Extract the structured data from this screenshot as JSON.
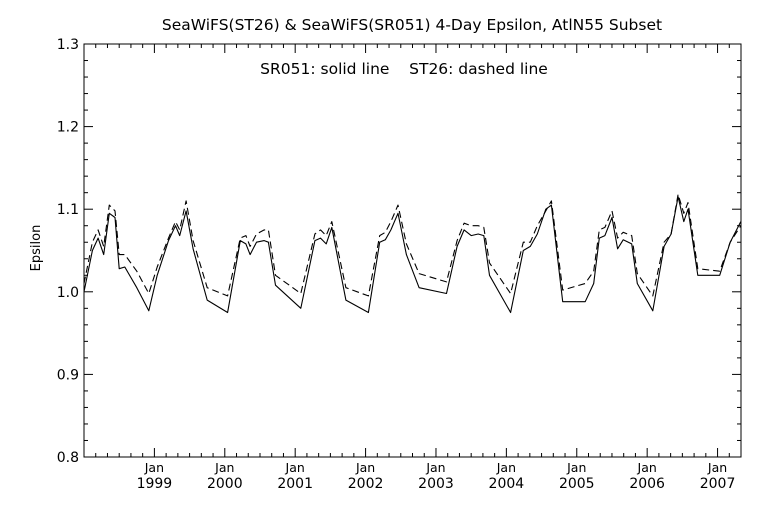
{
  "chart_data": {
    "type": "line",
    "title": "SeaWiFS(ST26) & SeaWiFS(SR051) 4-Day Epsilon, AtlN55 Subset",
    "annotation": "SR051: solid line    ST26: dashed line",
    "ylabel": "Epsilon",
    "xlabel": "",
    "ylim": [
      0.8,
      1.3
    ],
    "y_ticks": [
      "0.8",
      "0.9",
      "1.0",
      "1.1",
      "1.2",
      "1.3"
    ],
    "xlim": [
      1998.0,
      2007.333
    ],
    "x_ticks": [
      {
        "value": 1999.0,
        "month": "Jan",
        "year": "1999"
      },
      {
        "value": 2000.0,
        "month": "Jan",
        "year": "2000"
      },
      {
        "value": 2001.0,
        "month": "Jan",
        "year": "2001"
      },
      {
        "value": 2002.0,
        "month": "Jan",
        "year": "2002"
      },
      {
        "value": 2003.0,
        "month": "Jan",
        "year": "2003"
      },
      {
        "value": 2004.0,
        "month": "Jan",
        "year": "2004"
      },
      {
        "value": 2005.0,
        "month": "Jan",
        "year": "2005"
      },
      {
        "value": 2006.0,
        "month": "Jan",
        "year": "2006"
      },
      {
        "value": 2007.0,
        "month": "Jan",
        "year": "2007"
      }
    ],
    "series": [
      {
        "name": "SR051",
        "style": "solid",
        "color": "#000000",
        "points": [
          [
            1998.0,
            1.0
          ],
          [
            1998.12,
            1.05
          ],
          [
            1998.2,
            1.065
          ],
          [
            1998.28,
            1.045
          ],
          [
            1998.36,
            1.095
          ],
          [
            1998.44,
            1.09
          ],
          [
            1998.5,
            1.028
          ],
          [
            1998.58,
            1.03
          ],
          [
            1998.75,
            1.005
          ],
          [
            1998.92,
            0.977
          ],
          [
            1999.04,
            1.02
          ],
          [
            1999.2,
            1.062
          ],
          [
            1999.3,
            1.08
          ],
          [
            1999.36,
            1.068
          ],
          [
            1999.45,
            1.098
          ],
          [
            1999.55,
            1.052
          ],
          [
            1999.75,
            0.99
          ],
          [
            2000.04,
            0.975
          ],
          [
            2000.22,
            1.062
          ],
          [
            2000.3,
            1.058
          ],
          [
            2000.36,
            1.045
          ],
          [
            2000.45,
            1.06
          ],
          [
            2000.56,
            1.062
          ],
          [
            2000.62,
            1.06
          ],
          [
            2000.72,
            1.008
          ],
          [
            2001.08,
            0.98
          ],
          [
            2001.28,
            1.062
          ],
          [
            2001.36,
            1.065
          ],
          [
            2001.44,
            1.058
          ],
          [
            2001.52,
            1.078
          ],
          [
            2001.72,
            0.99
          ],
          [
            2002.04,
            0.975
          ],
          [
            2002.2,
            1.06
          ],
          [
            2002.28,
            1.063
          ],
          [
            2002.36,
            1.075
          ],
          [
            2002.46,
            1.095
          ],
          [
            2002.58,
            1.045
          ],
          [
            2002.76,
            1.005
          ],
          [
            2003.15,
            0.998
          ],
          [
            2003.3,
            1.055
          ],
          [
            2003.4,
            1.075
          ],
          [
            2003.5,
            1.068
          ],
          [
            2003.6,
            1.07
          ],
          [
            2003.68,
            1.068
          ],
          [
            2003.76,
            1.02
          ],
          [
            2004.06,
            0.975
          ],
          [
            2004.24,
            1.05
          ],
          [
            2004.34,
            1.055
          ],
          [
            2004.44,
            1.07
          ],
          [
            2004.56,
            1.1
          ],
          [
            2004.64,
            1.105
          ],
          [
            2004.8,
            0.988
          ],
          [
            2005.12,
            0.988
          ],
          [
            2005.24,
            1.01
          ],
          [
            2005.32,
            1.065
          ],
          [
            2005.4,
            1.068
          ],
          [
            2005.5,
            1.09
          ],
          [
            2005.58,
            1.052
          ],
          [
            2005.66,
            1.063
          ],
          [
            2005.78,
            1.058
          ],
          [
            2005.86,
            1.01
          ],
          [
            2006.08,
            0.977
          ],
          [
            2006.24,
            1.055
          ],
          [
            2006.34,
            1.07
          ],
          [
            2006.44,
            1.115
          ],
          [
            2006.52,
            1.085
          ],
          [
            2006.58,
            1.1
          ],
          [
            2006.72,
            1.02
          ],
          [
            2007.03,
            1.02
          ],
          [
            2007.18,
            1.06
          ],
          [
            2007.33,
            1.085
          ]
        ]
      },
      {
        "name": "ST26",
        "style": "dashed",
        "color": "#000000",
        "points": [
          [
            1998.0,
            1.01
          ],
          [
            1998.12,
            1.06
          ],
          [
            1998.2,
            1.075
          ],
          [
            1998.28,
            1.055
          ],
          [
            1998.36,
            1.105
          ],
          [
            1998.44,
            1.098
          ],
          [
            1998.5,
            1.045
          ],
          [
            1998.58,
            1.045
          ],
          [
            1998.75,
            1.025
          ],
          [
            1998.92,
            0.998
          ],
          [
            1999.04,
            1.03
          ],
          [
            1999.2,
            1.065
          ],
          [
            1999.3,
            1.085
          ],
          [
            1999.36,
            1.075
          ],
          [
            1999.45,
            1.11
          ],
          [
            1999.55,
            1.062
          ],
          [
            1999.75,
            1.005
          ],
          [
            2000.04,
            0.995
          ],
          [
            2000.22,
            1.065
          ],
          [
            2000.3,
            1.068
          ],
          [
            2000.36,
            1.055
          ],
          [
            2000.45,
            1.07
          ],
          [
            2000.56,
            1.075
          ],
          [
            2000.62,
            1.075
          ],
          [
            2000.72,
            1.02
          ],
          [
            2001.08,
            0.998
          ],
          [
            2001.28,
            1.07
          ],
          [
            2001.36,
            1.075
          ],
          [
            2001.44,
            1.068
          ],
          [
            2001.52,
            1.085
          ],
          [
            2001.72,
            1.005
          ],
          [
            2002.04,
            0.995
          ],
          [
            2002.2,
            1.068
          ],
          [
            2002.28,
            1.072
          ],
          [
            2002.36,
            1.085
          ],
          [
            2002.46,
            1.105
          ],
          [
            2002.58,
            1.058
          ],
          [
            2002.76,
            1.022
          ],
          [
            2003.15,
            1.012
          ],
          [
            2003.3,
            1.062
          ],
          [
            2003.4,
            1.083
          ],
          [
            2003.5,
            1.08
          ],
          [
            2003.6,
            1.08
          ],
          [
            2003.68,
            1.078
          ],
          [
            2003.76,
            1.035
          ],
          [
            2004.06,
            0.998
          ],
          [
            2004.24,
            1.06
          ],
          [
            2004.34,
            1.06
          ],
          [
            2004.44,
            1.08
          ],
          [
            2004.56,
            1.098
          ],
          [
            2004.64,
            1.11
          ],
          [
            2004.8,
            1.002
          ],
          [
            2005.12,
            1.01
          ],
          [
            2005.24,
            1.025
          ],
          [
            2005.32,
            1.075
          ],
          [
            2005.4,
            1.078
          ],
          [
            2005.5,
            1.098
          ],
          [
            2005.58,
            1.065
          ],
          [
            2005.66,
            1.072
          ],
          [
            2005.78,
            1.068
          ],
          [
            2005.86,
            1.022
          ],
          [
            2006.08,
            0.995
          ],
          [
            2006.24,
            1.06
          ],
          [
            2006.34,
            1.07
          ],
          [
            2006.44,
            1.118
          ],
          [
            2006.52,
            1.095
          ],
          [
            2006.58,
            1.108
          ],
          [
            2006.72,
            1.028
          ],
          [
            2007.03,
            1.025
          ],
          [
            2007.18,
            1.06
          ],
          [
            2007.33,
            1.08
          ]
        ]
      }
    ]
  }
}
